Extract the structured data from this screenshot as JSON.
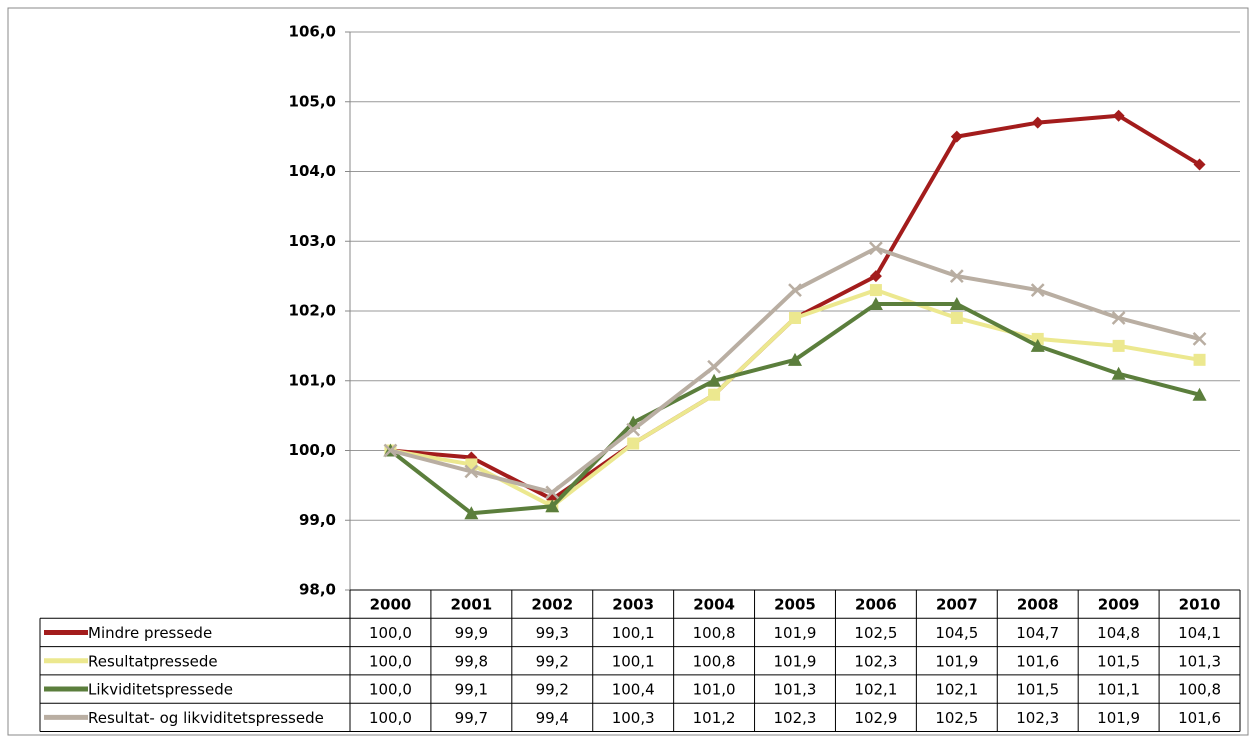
{
  "chart_data": {
    "type": "line",
    "categories": [
      "2000",
      "2001",
      "2002",
      "2003",
      "2004",
      "2005",
      "2006",
      "2007",
      "2008",
      "2009",
      "2010"
    ],
    "ylim": [
      98,
      106
    ],
    "yticks": [
      {
        "value": 98,
        "label": "98,0"
      },
      {
        "value": 99,
        "label": "99,0"
      },
      {
        "value": 100,
        "label": "100,0"
      },
      {
        "value": 101,
        "label": "101,0"
      },
      {
        "value": 102,
        "label": "102,0"
      },
      {
        "value": 103,
        "label": "103,0"
      },
      {
        "value": 104,
        "label": "104,0"
      },
      {
        "value": 105,
        "label": "105,0"
      },
      {
        "value": 106,
        "label": "106,0"
      }
    ],
    "grid": true,
    "series": [
      {
        "name": "Mindre pressede",
        "color": "#a31c1c",
        "marker": "diamond",
        "values": [
          100.0,
          99.9,
          99.3,
          100.1,
          100.8,
          101.9,
          102.5,
          104.5,
          104.7,
          104.8,
          104.1
        ],
        "value_labels": [
          "100,0",
          "99,9",
          "99,3",
          "100,1",
          "100,8",
          "101,9",
          "102,5",
          "104,5",
          "104,7",
          "104,8",
          "104,1"
        ]
      },
      {
        "name": "Resultatpressede",
        "color": "#ece88f",
        "marker": "square",
        "values": [
          100.0,
          99.8,
          99.2,
          100.1,
          100.8,
          101.9,
          102.3,
          101.9,
          101.6,
          101.5,
          101.3
        ],
        "value_labels": [
          "100,0",
          "99,8",
          "99,2",
          "100,1",
          "100,8",
          "101,9",
          "102,3",
          "101,9",
          "101,6",
          "101,5",
          "101,3"
        ]
      },
      {
        "name": "Likviditetspressede",
        "color": "#5b7e3c",
        "marker": "triangle",
        "values": [
          100.0,
          99.1,
          99.2,
          100.4,
          101.0,
          101.3,
          102.1,
          102.1,
          101.5,
          101.1,
          100.8
        ],
        "value_labels": [
          "100,0",
          "99,1",
          "99,2",
          "100,4",
          "101,0",
          "101,3",
          "102,1",
          "102,1",
          "101,5",
          "101,1",
          "100,8"
        ]
      },
      {
        "name": "Resultat- og likviditetspressede",
        "color": "#b9aea2",
        "marker": "x",
        "values": [
          100.0,
          99.7,
          99.4,
          100.3,
          101.2,
          102.3,
          102.9,
          102.5,
          102.3,
          101.9,
          101.6
        ],
        "value_labels": [
          "100,0",
          "99,7",
          "99,4",
          "100,3",
          "101,2",
          "102,3",
          "102,9",
          "102,5",
          "102,3",
          "101,9",
          "101,6"
        ]
      }
    ]
  }
}
